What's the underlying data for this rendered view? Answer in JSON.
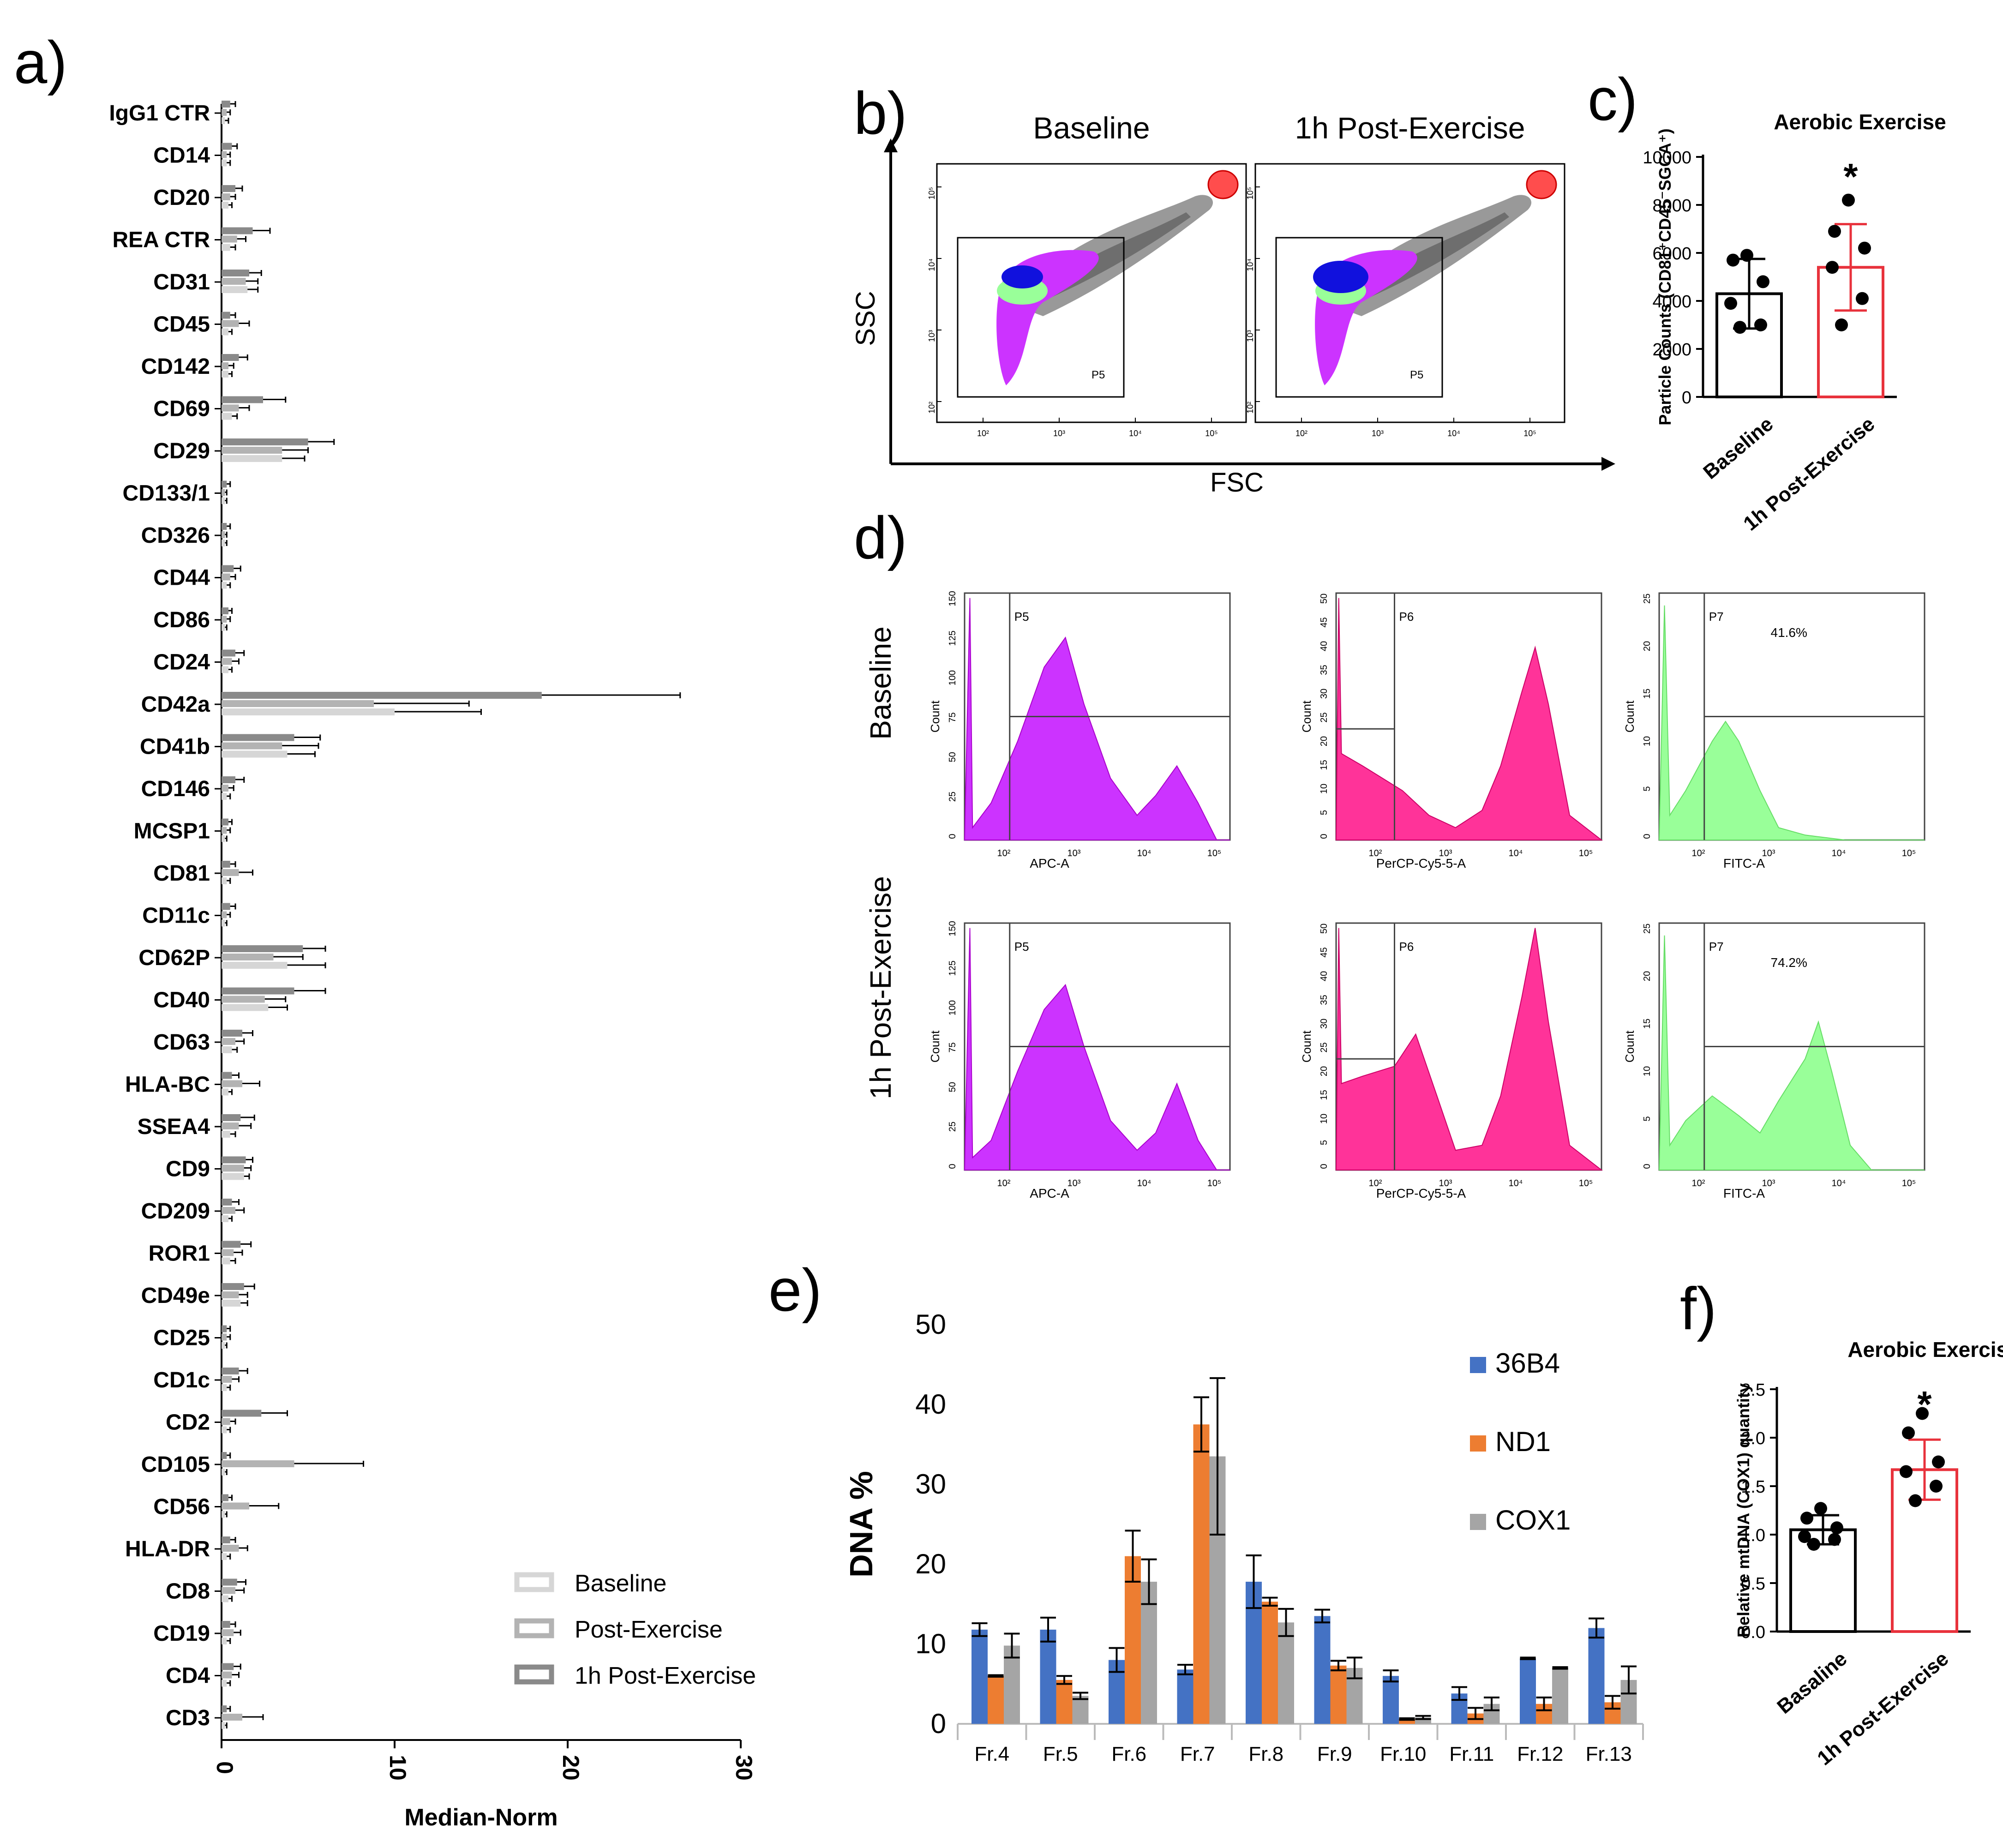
{
  "colors": {
    "baseline": "#d6d6d6",
    "post": "#b3b3b3",
    "post1h": "#8a8a8a",
    "blue": "#4472c4",
    "orange": "#ed7d31",
    "gray": "#a5a5a5",
    "red": "#e8323c",
    "magenta": "#cc33ff",
    "pink": "#ff3399",
    "green": "#99ff99"
  },
  "panels": {
    "a": "a)",
    "b": "b)",
    "c": "c)",
    "d": "d)",
    "e": "e)",
    "f": "f)"
  },
  "chart_data": [
    {
      "panel": "a",
      "type": "bar",
      "orientation": "horizontal",
      "xlabel": "Median-Norm",
      "xlim": [
        0,
        30
      ],
      "xticks": [
        0,
        10,
        20,
        30
      ],
      "categories": [
        "IgG1 CTR",
        "CD14",
        "CD20",
        "REA CTR",
        "CD31",
        "CD45",
        "CD142",
        "CD69",
        "CD29",
        "CD133/1",
        "CD326",
        "CD44",
        "CD86",
        "CD24",
        "CD42a",
        "CD41b",
        "CD146",
        "MCSP1",
        "CD81",
        "CD11c",
        "CD62P",
        "CD40",
        "CD63",
        "HLA-BC",
        "SSEA4",
        "CD9",
        "CD209",
        "ROR1",
        "CD49e",
        "CD25",
        "CD1c",
        "CD2",
        "CD105",
        "CD56",
        "HLA-DR",
        "CD8",
        "CD19",
        "CD4",
        "CD3"
      ],
      "series": [
        {
          "name": "1h Post-Exercise",
          "values": [
            0.5,
            0.6,
            0.8,
            1.8,
            1.6,
            0.5,
            1.0,
            2.4,
            5.0,
            0.3,
            0.3,
            0.7,
            0.4,
            0.8,
            18.5,
            4.2,
            0.8,
            0.4,
            0.5,
            0.5,
            4.7,
            4.2,
            1.2,
            0.6,
            1.1,
            1.4,
            0.6,
            1.1,
            1.3,
            0.3,
            1.0,
            2.3,
            0.3,
            0.4,
            0.5,
            0.9,
            0.5,
            0.7,
            0.3
          ],
          "errors": [
            0.3,
            0.3,
            0.4,
            1.0,
            0.7,
            0.3,
            0.5,
            1.3,
            1.5,
            0.2,
            0.2,
            0.4,
            0.2,
            0.5,
            8.0,
            1.5,
            0.5,
            0.2,
            0.3,
            0.3,
            1.3,
            1.8,
            0.6,
            0.4,
            0.8,
            0.4,
            0.4,
            0.6,
            0.6,
            0.2,
            0.5,
            1.5,
            0.2,
            0.2,
            0.3,
            0.5,
            0.3,
            0.4,
            0.2
          ]
        },
        {
          "name": "Post-Exercise",
          "values": [
            0.3,
            0.3,
            0.5,
            0.9,
            1.4,
            1.0,
            0.4,
            1.0,
            3.5,
            0.2,
            0.2,
            0.5,
            0.3,
            0.6,
            8.8,
            3.5,
            0.4,
            0.3,
            1.0,
            0.3,
            3.0,
            2.5,
            0.8,
            1.2,
            1.0,
            1.3,
            0.8,
            0.7,
            1.0,
            0.3,
            0.6,
            0.5,
            4.2,
            1.6,
            1.0,
            0.8,
            0.7,
            0.6,
            1.2
          ],
          "errors": [
            0.2,
            0.2,
            0.3,
            0.5,
            0.7,
            0.6,
            0.3,
            0.6,
            1.5,
            0.1,
            0.1,
            0.3,
            0.2,
            0.4,
            5.5,
            2.1,
            0.3,
            0.2,
            0.8,
            0.2,
            1.7,
            1.2,
            0.5,
            1.0,
            0.7,
            0.4,
            0.5,
            0.5,
            0.5,
            0.2,
            0.4,
            0.3,
            4.0,
            1.7,
            0.5,
            0.5,
            0.4,
            0.4,
            1.2
          ]
        },
        {
          "name": "Baseline",
          "values": [
            0.2,
            0.3,
            0.4,
            0.5,
            1.5,
            0.4,
            0.4,
            0.6,
            3.5,
            0.2,
            0.2,
            0.3,
            0.2,
            0.4,
            10.0,
            3.8,
            0.3,
            0.2,
            0.3,
            0.2,
            3.8,
            2.7,
            0.6,
            0.4,
            0.5,
            1.3,
            0.4,
            0.5,
            1.1,
            0.2,
            0.3,
            0.3,
            0.2,
            0.2,
            0.3,
            0.4,
            0.3,
            0.3,
            0.2
          ],
          "errors": [
            0.2,
            0.2,
            0.2,
            0.3,
            0.6,
            0.2,
            0.2,
            0.3,
            1.3,
            0.1,
            0.1,
            0.2,
            0.1,
            0.2,
            5.0,
            1.6,
            0.2,
            0.1,
            0.2,
            0.1,
            2.2,
            1.1,
            0.3,
            0.2,
            0.3,
            0.3,
            0.2,
            0.3,
            0.4,
            0.1,
            0.2,
            0.2,
            0.1,
            0.1,
            0.2,
            0.2,
            0.2,
            0.2,
            0.1
          ]
        }
      ],
      "legend": [
        "Baseline",
        "Post-Exercise",
        "1h Post-Exercise"
      ]
    },
    {
      "panel": "b",
      "type": "contour",
      "titles": [
        "Baseline",
        "1h Post-Exercise"
      ],
      "xlabel": "FSC",
      "ylabel": "SSC",
      "xticklabels": [
        "10²",
        "10³",
        "10⁴",
        "10⁵"
      ],
      "yticklabels": [
        "10⁵",
        "10⁴",
        "10³",
        "10²"
      ],
      "gate": "P5"
    },
    {
      "panel": "c",
      "type": "bar",
      "title": "Aerobic Exercise",
      "ylabel": "Particle Counts (CD81⁺CD45⁻SGCA⁺)",
      "categories": [
        "Baseline",
        "1h Post-Exercise"
      ],
      "values": [
        4300,
        5400
      ],
      "errors": [
        1450,
        1800
      ],
      "points": [
        [
          5900,
          5700,
          4800,
          3900,
          3000,
          2900
        ],
        [
          8200,
          6900,
          6200,
          5400,
          4100,
          3000
        ]
      ],
      "ylim": [
        0,
        10000
      ],
      "yticks": [
        "0",
        "2000",
        "4000",
        "6000",
        "8000",
        "10000"
      ],
      "significance": "*"
    },
    {
      "panel": "d",
      "type": "histogram",
      "rows": [
        "Baseline",
        "1h Post-Exercise"
      ],
      "columns": [
        {
          "xlabel": "APC-A",
          "gate": "P5",
          "yticks": [
            "0",
            "25",
            "50",
            "75",
            "100",
            "125",
            "150"
          ]
        },
        {
          "xlabel": "PerCP-Cy5-5-A",
          "gate": "P6",
          "yticks": [
            "0",
            "5",
            "10",
            "15",
            "20",
            "25",
            "30",
            "35",
            "40",
            "45",
            "50"
          ]
        },
        {
          "xlabel": "FITC-A",
          "gate": "P7",
          "yticks": [
            "0",
            "5",
            "10",
            "15",
            "20",
            "25"
          ]
        }
      ],
      "ylabel": "Count",
      "xticklabels": [
        "10²",
        "10³",
        "10⁴",
        "10⁵"
      ],
      "percentages": [
        "41.6%",
        "74.2%"
      ]
    },
    {
      "panel": "e",
      "type": "bar",
      "ylabel": "DNA %",
      "categories": [
        "Fr.4",
        "Fr.5",
        "Fr.6",
        "Fr.7",
        "Fr.8",
        "Fr.9",
        "Fr.10",
        "Fr.11",
        "Fr.12",
        "Fr.13"
      ],
      "ylim": [
        0,
        50
      ],
      "yticks": [
        "0",
        "10",
        "20",
        "30",
        "40",
        "50"
      ],
      "series": [
        {
          "name": "36B4",
          "values": [
            11.8,
            11.8,
            8.0,
            6.8,
            17.8,
            13.5,
            6.0,
            3.8,
            8.2,
            12.0
          ],
          "errors": [
            0.8,
            1.5,
            1.5,
            0.6,
            3.3,
            0.8,
            0.7,
            0.8,
            0.1,
            1.2
          ]
        },
        {
          "name": "ND1",
          "values": [
            6.0,
            5.5,
            21.0,
            37.5,
            15.3,
            7.3,
            0.6,
            1.3,
            2.5,
            2.7
          ],
          "errors": [
            0.1,
            0.5,
            3.2,
            3.4,
            0.5,
            0.6,
            0.1,
            0.7,
            0.8,
            0.8
          ]
        },
        {
          "name": "COX1",
          "values": [
            9.8,
            3.5,
            17.8,
            33.5,
            12.7,
            7.0,
            0.8,
            2.5,
            7.0,
            5.5
          ],
          "errors": [
            1.5,
            0.4,
            2.8,
            9.8,
            1.7,
            1.3,
            0.2,
            0.8,
            0.1,
            1.7
          ]
        }
      ]
    },
    {
      "panel": "f",
      "type": "bar",
      "title": "Aerobic Exercise",
      "ylabel": "Relative mtDNA (COX1) quantity",
      "categories": [
        "Basaline",
        "1h Post-Exercise"
      ],
      "values": [
        1.05,
        1.67
      ],
      "errors": [
        0.15,
        0.31
      ],
      "points": [
        [
          1.27,
          1.17,
          1.07,
          0.98,
          0.95,
          0.9
        ],
        [
          2.25,
          2.05,
          1.75,
          1.65,
          1.5,
          1.35
        ]
      ],
      "ylim": [
        0,
        2.5
      ],
      "yticks": [
        "0.0",
        "0.5",
        "1.0",
        "1.5",
        "2.0",
        "2.5"
      ],
      "significance": "*"
    }
  ]
}
